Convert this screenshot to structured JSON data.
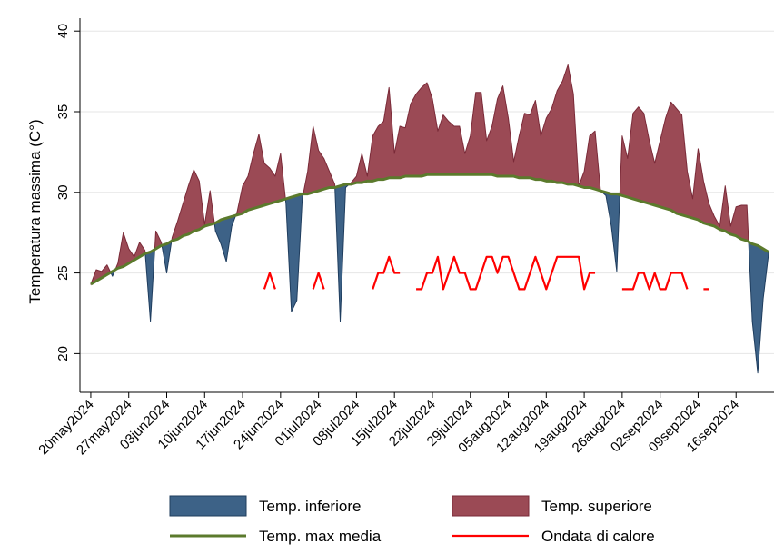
{
  "chart_data": {
    "type": "range-area",
    "y_label": "Temperatura massima (C°)",
    "x": [
      "2024-05-20",
      "2024-05-21",
      "2024-05-22",
      "2024-05-23",
      "2024-05-24",
      "2024-05-25",
      "2024-05-26",
      "2024-05-27",
      "2024-05-28",
      "2024-05-29",
      "2024-05-30",
      "2024-05-31",
      "2024-06-01",
      "2024-06-02",
      "2024-06-03",
      "2024-06-04",
      "2024-06-05",
      "2024-06-06",
      "2024-06-07",
      "2024-06-08",
      "2024-06-09",
      "2024-06-10",
      "2024-06-11",
      "2024-06-12",
      "2024-06-13",
      "2024-06-14",
      "2024-06-15",
      "2024-06-16",
      "2024-06-17",
      "2024-06-18",
      "2024-06-19",
      "2024-06-20",
      "2024-06-21",
      "2024-06-22",
      "2024-06-23",
      "2024-06-24",
      "2024-06-25",
      "2024-06-26",
      "2024-06-27",
      "2024-06-28",
      "2024-06-29",
      "2024-06-30",
      "2024-07-01",
      "2024-07-02",
      "2024-07-03",
      "2024-07-04",
      "2024-07-05",
      "2024-07-06",
      "2024-07-07",
      "2024-07-08",
      "2024-07-09",
      "2024-07-10",
      "2024-07-11",
      "2024-07-12",
      "2024-07-13",
      "2024-07-14",
      "2024-07-15",
      "2024-07-16",
      "2024-07-17",
      "2024-07-18",
      "2024-07-19",
      "2024-07-20",
      "2024-07-21",
      "2024-07-22",
      "2024-07-23",
      "2024-07-24",
      "2024-07-25",
      "2024-07-26",
      "2024-07-27",
      "2024-07-28",
      "2024-07-29",
      "2024-07-30",
      "2024-07-31",
      "2024-08-01",
      "2024-08-02",
      "2024-08-03",
      "2024-08-04",
      "2024-08-05",
      "2024-08-06",
      "2024-08-07",
      "2024-08-08",
      "2024-08-09",
      "2024-08-10",
      "2024-08-11",
      "2024-08-12",
      "2024-08-13",
      "2024-08-14",
      "2024-08-15",
      "2024-08-16",
      "2024-08-17",
      "2024-08-18",
      "2024-08-19",
      "2024-08-20",
      "2024-08-21",
      "2024-08-22",
      "2024-08-23",
      "2024-08-24",
      "2024-08-25",
      "2024-08-26",
      "2024-08-27",
      "2024-08-28",
      "2024-08-29",
      "2024-08-30",
      "2024-08-31",
      "2024-09-01",
      "2024-09-02",
      "2024-09-03",
      "2024-09-04",
      "2024-09-05",
      "2024-09-06",
      "2024-09-07",
      "2024-09-08",
      "2024-09-09",
      "2024-09-10",
      "2024-09-11",
      "2024-09-12",
      "2024-09-13",
      "2024-09-14",
      "2024-09-15",
      "2024-09-16",
      "2024-09-17",
      "2024-09-18",
      "2024-09-19",
      "2024-09-20",
      "2024-09-21",
      "2024-09-22"
    ],
    "series": [
      {
        "name": "Temp. inferiore",
        "color": "#3d6287",
        "values": [
          null,
          null,
          null,
          null,
          24.8,
          null,
          null,
          null,
          null,
          null,
          null,
          22.0,
          null,
          null,
          25.0,
          null,
          null,
          null,
          null,
          null,
          null,
          null,
          null,
          27.6,
          26.8,
          25.7,
          27.9,
          null,
          null,
          null,
          null,
          null,
          null,
          null,
          null,
          null,
          29.3,
          22.6,
          23.3,
          29.6,
          null,
          null,
          null,
          null,
          null,
          null,
          22.0,
          30.3,
          null,
          null,
          null,
          null,
          null,
          null,
          null,
          null,
          null,
          null,
          null,
          null,
          null,
          null,
          null,
          null,
          null,
          null,
          null,
          null,
          null,
          null,
          null,
          null,
          null,
          null,
          null,
          null,
          null,
          null,
          null,
          null,
          null,
          null,
          null,
          null,
          null,
          null,
          null,
          null,
          null,
          null,
          null,
          null,
          null,
          null,
          null,
          29.8,
          27.9,
          25.1,
          null,
          null,
          null,
          null,
          null,
          null,
          null,
          null,
          null,
          null,
          null,
          null,
          null,
          null,
          null,
          null,
          null,
          null,
          null,
          null,
          null,
          null,
          null,
          null,
          22.0,
          18.8,
          23.4,
          26.2
        ]
      },
      {
        "name": "Temp. superiore",
        "color": "#9b4a55",
        "values": [
          24.3,
          25.2,
          25.1,
          25.5,
          null,
          25.6,
          27.5,
          26.5,
          26.0,
          26.9,
          26.4,
          null,
          27.6,
          26.9,
          null,
          27.2,
          28.2,
          29.3,
          30.4,
          31.4,
          30.7,
          28.0,
          30.1,
          null,
          null,
          null,
          null,
          28.8,
          30.4,
          31.0,
          32.4,
          33.6,
          31.8,
          31.5,
          31.0,
          32.4,
          null,
          null,
          null,
          null,
          31.3,
          34.1,
          32.6,
          32.1,
          31.3,
          30.5,
          null,
          null,
          30.6,
          31.0,
          32.4,
          31.0,
          33.5,
          34.1,
          34.4,
          36.5,
          32.4,
          34.1,
          34.0,
          35.5,
          36.1,
          36.5,
          36.8,
          35.8,
          33.8,
          34.8,
          34.4,
          34.1,
          34.1,
          32.4,
          33.5,
          36.2,
          36.2,
          33.2,
          34.1,
          35.8,
          36.6,
          34.6,
          31.9,
          33.5,
          34.9,
          34.8,
          35.7,
          33.5,
          34.6,
          35.2,
          36.3,
          36.9,
          37.9,
          36.1,
          30.4,
          31.3,
          33.5,
          33.8,
          30.1,
          null,
          null,
          null,
          33.5,
          32.1,
          34.9,
          35.3,
          34.9,
          33.2,
          31.8,
          33.2,
          34.6,
          35.6,
          35.2,
          34.8,
          31.3,
          29.6,
          32.7,
          30.7,
          29.3,
          28.5,
          27.9,
          30.4,
          27.9,
          29.1,
          29.2,
          29.2,
          null,
          null,
          null,
          null
        ]
      },
      {
        "name": "Temp. max media",
        "color": "#5b7a2c",
        "values": [
          24.3,
          24.5,
          24.7,
          24.9,
          25.1,
          25.3,
          25.4,
          25.6,
          25.8,
          26.0,
          26.2,
          26.3,
          26.5,
          26.7,
          26.8,
          27.0,
          27.1,
          27.3,
          27.4,
          27.6,
          27.7,
          27.9,
          28.0,
          28.1,
          28.3,
          28.4,
          28.5,
          28.6,
          28.7,
          28.9,
          29.0,
          29.1,
          29.2,
          29.3,
          29.4,
          29.5,
          29.6,
          29.7,
          29.8,
          29.9,
          29.9,
          30.0,
          30.1,
          30.2,
          30.3,
          30.3,
          30.4,
          30.5,
          30.5,
          30.6,
          30.6,
          30.7,
          30.7,
          30.8,
          30.8,
          30.9,
          30.9,
          30.9,
          31.0,
          31.0,
          31.0,
          31.0,
          31.1,
          31.1,
          31.1,
          31.1,
          31.1,
          31.1,
          31.1,
          31.1,
          31.1,
          31.1,
          31.1,
          31.1,
          31.1,
          31.0,
          31.0,
          31.0,
          31.0,
          30.9,
          30.9,
          30.9,
          30.8,
          30.8,
          30.7,
          30.7,
          30.6,
          30.6,
          30.5,
          30.5,
          30.4,
          30.3,
          30.3,
          30.2,
          30.1,
          30.0,
          29.9,
          29.9,
          29.8,
          29.7,
          29.6,
          29.5,
          29.4,
          29.3,
          29.2,
          29.1,
          29.0,
          28.9,
          28.7,
          28.6,
          28.5,
          28.4,
          28.3,
          28.1,
          28.0,
          27.9,
          27.7,
          27.6,
          27.4,
          27.3,
          27.1,
          27.0,
          26.8,
          26.7,
          26.5,
          26.3
        ]
      },
      {
        "name": "Ondata di calore",
        "color": "#ff0000",
        "values": [
          null,
          null,
          null,
          null,
          null,
          null,
          null,
          null,
          null,
          null,
          null,
          null,
          null,
          null,
          null,
          null,
          null,
          null,
          null,
          null,
          null,
          null,
          null,
          null,
          null,
          null,
          null,
          null,
          null,
          null,
          null,
          null,
          24,
          25,
          24,
          null,
          null,
          null,
          null,
          null,
          null,
          24,
          25,
          24,
          null,
          null,
          null,
          null,
          null,
          null,
          null,
          null,
          24,
          25,
          25,
          26,
          25,
          25,
          null,
          null,
          24,
          24,
          25,
          25,
          26,
          24,
          25,
          26,
          25,
          25,
          24,
          24,
          25,
          26,
          26,
          25,
          26,
          26,
          25,
          24,
          24,
          25,
          26,
          25,
          24,
          25,
          26,
          26,
          26,
          26,
          26,
          24,
          25,
          25,
          null,
          null,
          null,
          null,
          24,
          24,
          24,
          25,
          25,
          24,
          25,
          24,
          24,
          25,
          25,
          25,
          24,
          null,
          null,
          24,
          24,
          null,
          null,
          null,
          null,
          null,
          null,
          null,
          null,
          null,
          null,
          null
        ]
      }
    ],
    "xlim": [
      "2024-05-18",
      "2024-09-23"
    ],
    "xticks": [
      {
        "value": "2024-05-20",
        "label": "20may2024"
      },
      {
        "value": "2024-05-27",
        "label": "27may2024"
      },
      {
        "value": "2024-06-03",
        "label": "03jun2024"
      },
      {
        "value": "2024-06-10",
        "label": "10jun2024"
      },
      {
        "value": "2024-06-17",
        "label": "17jun2024"
      },
      {
        "value": "2024-06-24",
        "label": "24jun2024"
      },
      {
        "value": "2024-07-01",
        "label": "01jul2024"
      },
      {
        "value": "2024-07-08",
        "label": "08jul2024"
      },
      {
        "value": "2024-07-15",
        "label": "15jul2024"
      },
      {
        "value": "2024-07-22",
        "label": "22jul2024"
      },
      {
        "value": "2024-07-29",
        "label": "29jul2024"
      },
      {
        "value": "2024-08-05",
        "label": "05aug2024"
      },
      {
        "value": "2024-08-12",
        "label": "12aug2024"
      },
      {
        "value": "2024-08-19",
        "label": "19aug2024"
      },
      {
        "value": "2024-08-26",
        "label": "26aug2024"
      },
      {
        "value": "2024-09-02",
        "label": "02sep2024"
      },
      {
        "value": "2024-09-09",
        "label": "09sep2024"
      },
      {
        "value": "2024-09-16",
        "label": "16sep2024"
      }
    ],
    "ylim": [
      17.6,
      40.8
    ],
    "yticks": [
      20,
      25,
      30,
      35,
      40
    ],
    "grid": true
  }
}
